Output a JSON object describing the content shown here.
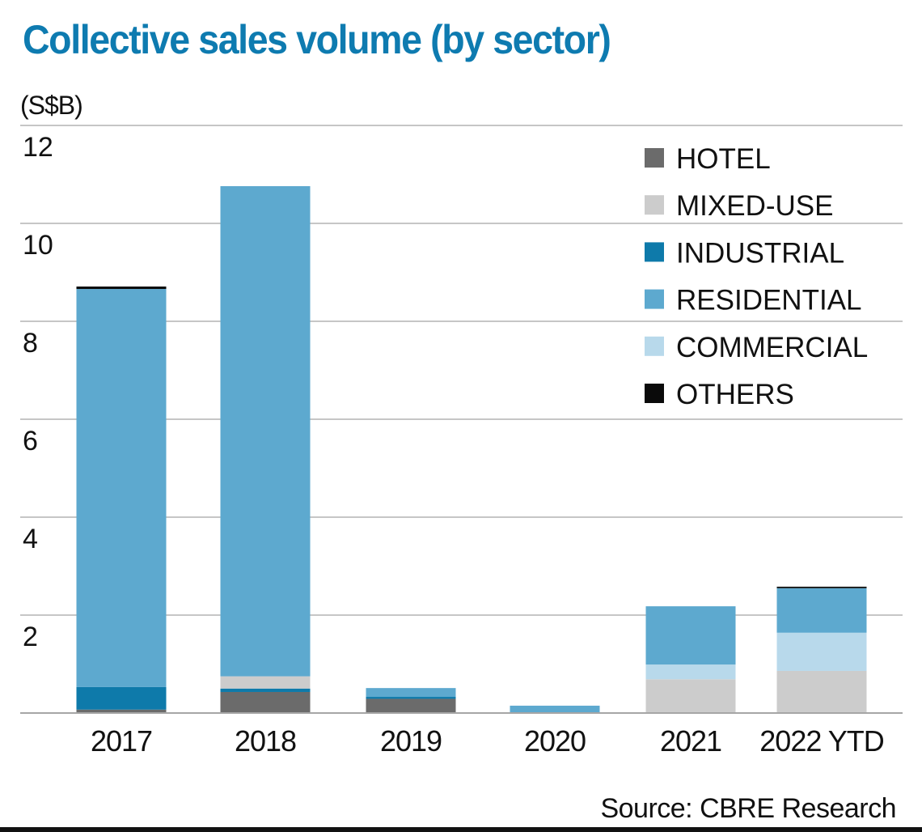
{
  "chart_data": {
    "type": "bar",
    "stacked": true,
    "title": "Collective sales volume (by sector)",
    "ylabel": "(S$B)",
    "xlabel": "",
    "ylim": [
      0,
      12
    ],
    "yticks": [
      2,
      4,
      6,
      8,
      10,
      12
    ],
    "ytick_labels": [
      "2",
      "4",
      "6",
      "8",
      "10",
      "12"
    ],
    "grid": true,
    "legend_position": "top-right",
    "categories": [
      "2017",
      "2018",
      "2019",
      "2020",
      "2021",
      "2022 YTD"
    ],
    "series": [
      {
        "name": "HOTEL",
        "color": "#6b6b6b",
        "values": [
          0.07,
          0.43,
          0.29,
          0,
          0,
          0
        ]
      },
      {
        "name": "INDUSTRIAL",
        "color": "#0e7aaa",
        "values": [
          0.46,
          0.07,
          0.04,
          0,
          0,
          0
        ]
      },
      {
        "name": "MIXED-USE",
        "color": "#cccccc",
        "values": [
          0,
          0.25,
          0,
          0,
          0.69,
          0.86
        ]
      },
      {
        "name": "COMMERCIAL",
        "color": "#b8d9eb",
        "values": [
          0,
          0,
          0,
          0,
          0.3,
          0.78
        ]
      },
      {
        "name": "RESIDENTIAL",
        "color": "#5da9cf",
        "values": [
          8.13,
          10.01,
          0.18,
          0.15,
          1.19,
          0.91
        ]
      },
      {
        "name": "OTHERS",
        "color": "#0a0a0a",
        "values": [
          0.05,
          0,
          0,
          0,
          0,
          0.03
        ]
      }
    ],
    "legend_order": [
      "HOTEL",
      "MIXED-USE",
      "INDUSTRIAL",
      "RESIDENTIAL",
      "COMMERCIAL",
      "OTHERS"
    ],
    "source": "Source: CBRE Research"
  },
  "header": {
    "title": "Collective sales volume (by sector)",
    "unit": "(S$B)"
  },
  "footer": {
    "source": "Source: CBRE Research"
  }
}
